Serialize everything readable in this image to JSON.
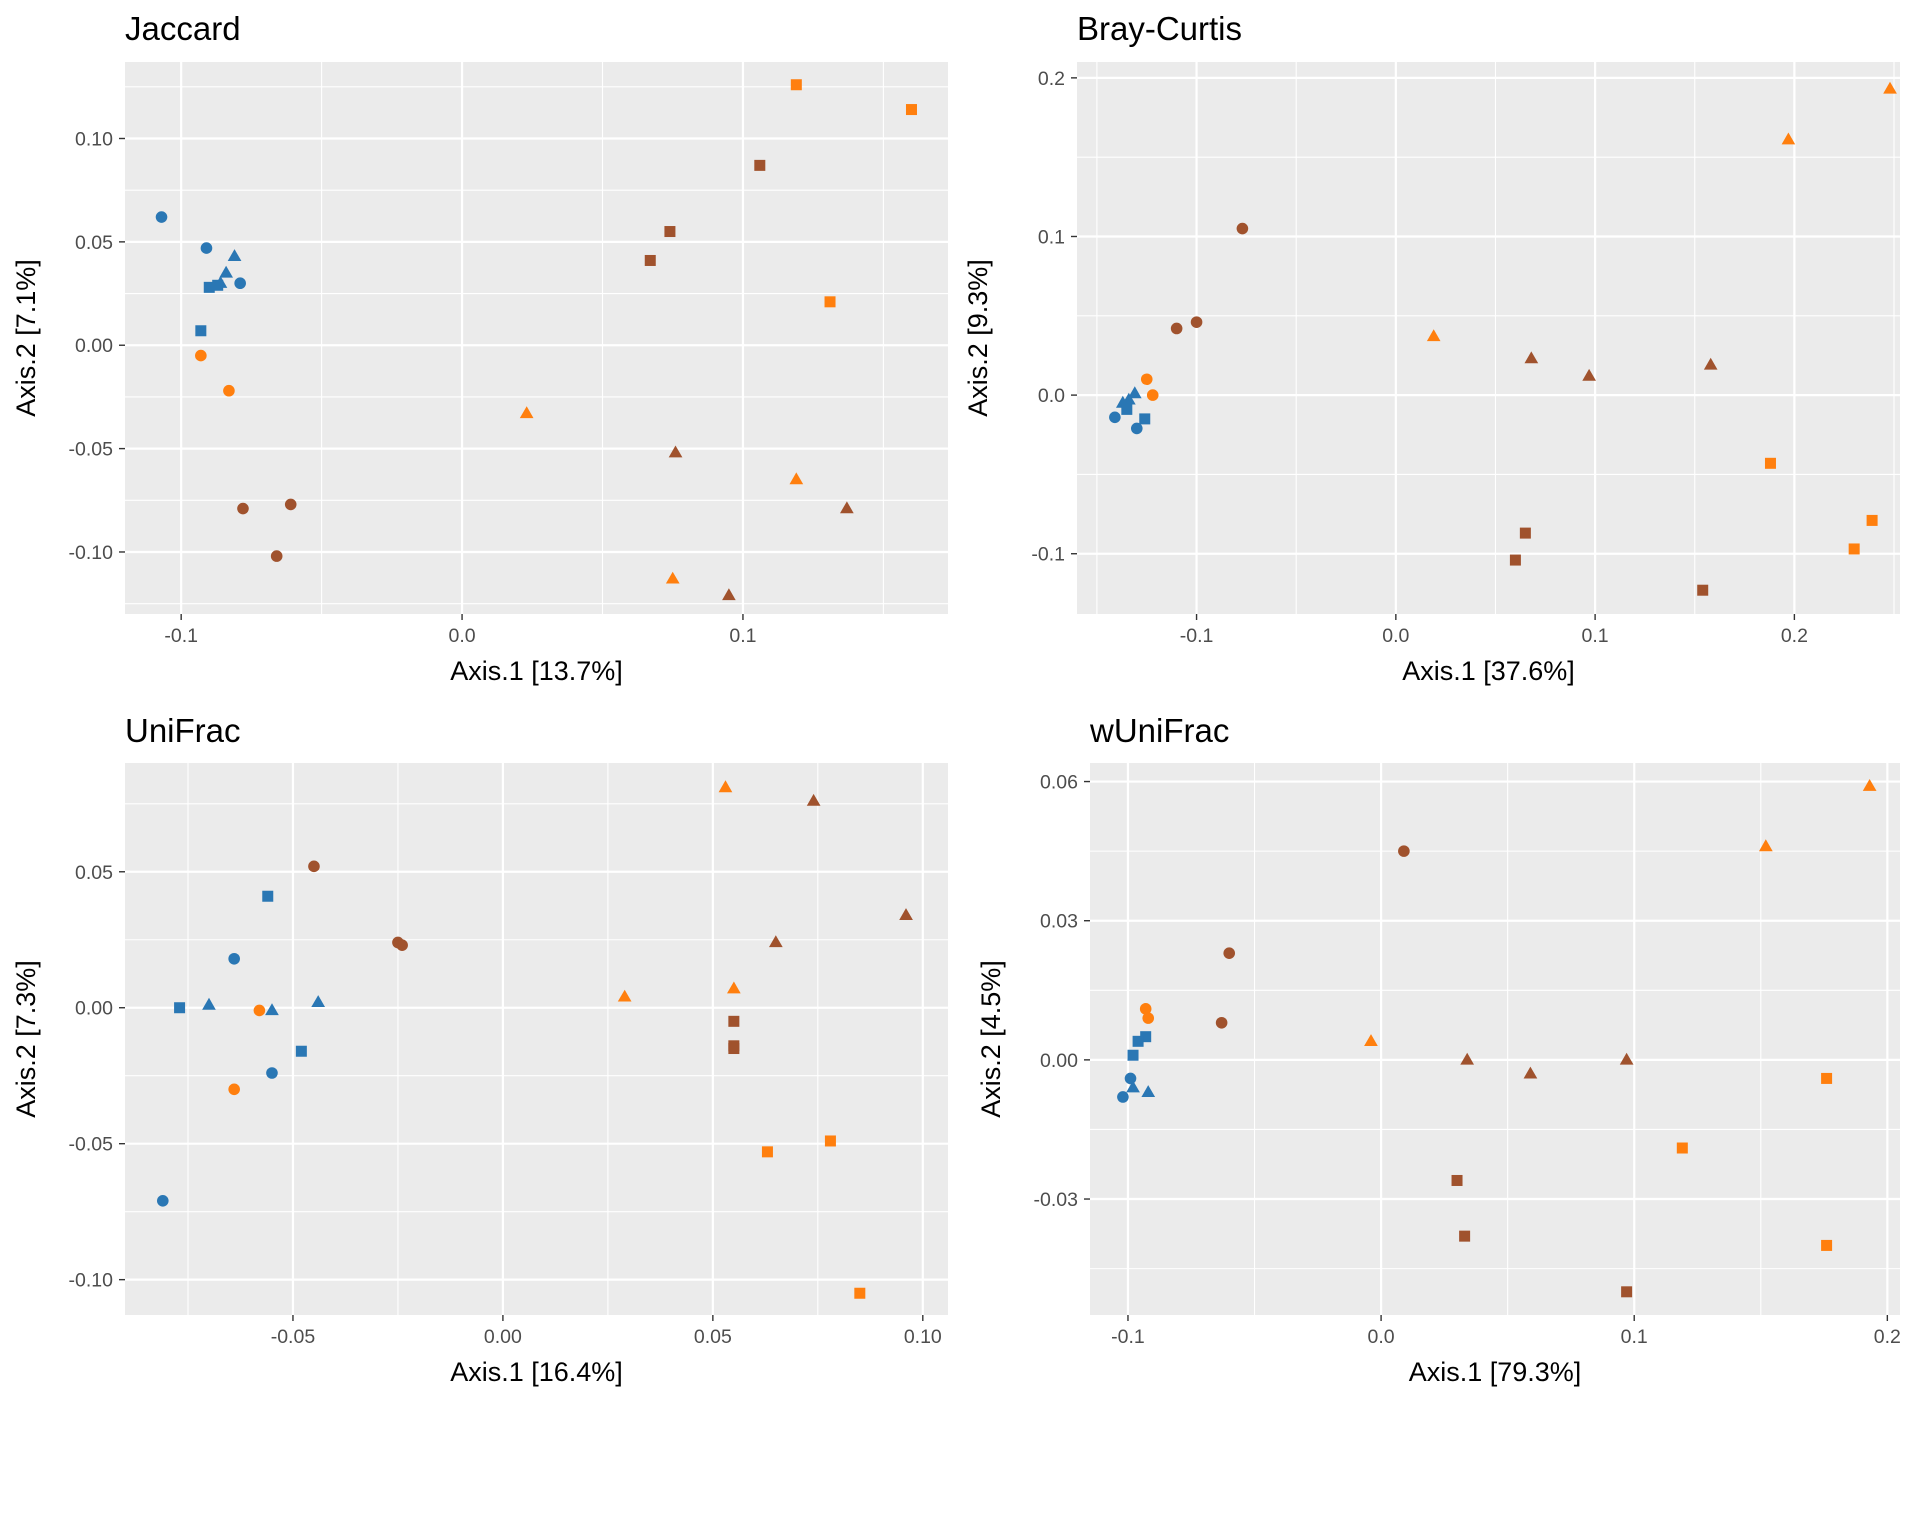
{
  "colors": {
    "blue": "#2a77b4",
    "orange": "#ff7f0e",
    "brown": "#a0522d"
  },
  "chart_data": [
    {
      "type": "scatter",
      "title": "Jaccard",
      "xlabel": "Axis.1   [13.7%]",
      "ylabel": "Axis.2   [7.1%]",
      "xlim": [
        -0.12,
        0.173
      ],
      "ylim": [
        -0.13,
        0.137
      ],
      "xticks": [
        -0.1,
        0.0,
        0.1
      ],
      "xtick_labels": [
        "-0.1",
        "0.0",
        "0.1"
      ],
      "yticks": [
        -0.1,
        -0.05,
        0.0,
        0.05,
        0.1
      ],
      "ytick_labels": [
        "-0.10",
        "-0.05",
        "0.00",
        "0.05",
        "0.10"
      ],
      "grid": true,
      "points": [
        {
          "x": -0.107,
          "y": 0.062,
          "color": "blue",
          "shape": "circle"
        },
        {
          "x": -0.091,
          "y": 0.047,
          "color": "blue",
          "shape": "circle"
        },
        {
          "x": -0.079,
          "y": 0.03,
          "color": "blue",
          "shape": "circle"
        },
        {
          "x": -0.081,
          "y": 0.043,
          "color": "blue",
          "shape": "triangle"
        },
        {
          "x": -0.084,
          "y": 0.035,
          "color": "blue",
          "shape": "triangle"
        },
        {
          "x": -0.086,
          "y": 0.03,
          "color": "blue",
          "shape": "triangle"
        },
        {
          "x": -0.09,
          "y": 0.028,
          "color": "blue",
          "shape": "square"
        },
        {
          "x": -0.087,
          "y": 0.029,
          "color": "blue",
          "shape": "square"
        },
        {
          "x": -0.093,
          "y": 0.007,
          "color": "blue",
          "shape": "square"
        },
        {
          "x": -0.093,
          "y": -0.005,
          "color": "orange",
          "shape": "circle"
        },
        {
          "x": -0.083,
          "y": -0.022,
          "color": "orange",
          "shape": "circle"
        },
        {
          "x": -0.078,
          "y": -0.079,
          "color": "brown",
          "shape": "circle"
        },
        {
          "x": -0.061,
          "y": -0.077,
          "color": "brown",
          "shape": "circle"
        },
        {
          "x": -0.066,
          "y": -0.102,
          "color": "brown",
          "shape": "circle"
        },
        {
          "x": 0.023,
          "y": -0.033,
          "color": "orange",
          "shape": "triangle"
        },
        {
          "x": 0.076,
          "y": -0.052,
          "color": "brown",
          "shape": "triangle"
        },
        {
          "x": 0.119,
          "y": -0.065,
          "color": "orange",
          "shape": "triangle"
        },
        {
          "x": 0.137,
          "y": -0.079,
          "color": "brown",
          "shape": "triangle"
        },
        {
          "x": 0.075,
          "y": -0.113,
          "color": "orange",
          "shape": "triangle"
        },
        {
          "x": 0.095,
          "y": -0.121,
          "color": "brown",
          "shape": "triangle"
        },
        {
          "x": 0.119,
          "y": 0.126,
          "color": "orange",
          "shape": "square"
        },
        {
          "x": 0.16,
          "y": 0.114,
          "color": "orange",
          "shape": "square"
        },
        {
          "x": 0.106,
          "y": 0.087,
          "color": "brown",
          "shape": "square"
        },
        {
          "x": 0.074,
          "y": 0.055,
          "color": "brown",
          "shape": "square"
        },
        {
          "x": 0.067,
          "y": 0.041,
          "color": "brown",
          "shape": "square"
        },
        {
          "x": 0.131,
          "y": 0.021,
          "color": "orange",
          "shape": "square"
        }
      ]
    },
    {
      "type": "scatter",
      "title": "Bray-Curtis",
      "xlabel": "Axis.1   [37.6%]",
      "ylabel": "Axis.2   [9.3%]",
      "xlim": [
        -0.16,
        0.253
      ],
      "ylim": [
        -0.138,
        0.21
      ],
      "xticks": [
        -0.1,
        0.0,
        0.1,
        0.2
      ],
      "xtick_labels": [
        "-0.1",
        "0.0",
        "0.1",
        "0.2"
      ],
      "yticks": [
        -0.1,
        0.0,
        0.1,
        0.2
      ],
      "ytick_labels": [
        "-0.1",
        "0.0",
        "0.1",
        "0.2"
      ],
      "grid": true,
      "points": [
        {
          "x": -0.077,
          "y": 0.105,
          "color": "brown",
          "shape": "circle"
        },
        {
          "x": -0.1,
          "y": 0.046,
          "color": "brown",
          "shape": "circle"
        },
        {
          "x": -0.11,
          "y": 0.042,
          "color": "brown",
          "shape": "circle"
        },
        {
          "x": -0.125,
          "y": 0.01,
          "color": "orange",
          "shape": "circle"
        },
        {
          "x": -0.122,
          "y": 0.0,
          "color": "orange",
          "shape": "circle"
        },
        {
          "x": -0.131,
          "y": 0.001,
          "color": "blue",
          "shape": "triangle"
        },
        {
          "x": -0.134,
          "y": -0.003,
          "color": "blue",
          "shape": "triangle"
        },
        {
          "x": -0.137,
          "y": -0.005,
          "color": "blue",
          "shape": "triangle"
        },
        {
          "x": -0.135,
          "y": -0.009,
          "color": "blue",
          "shape": "square"
        },
        {
          "x": -0.126,
          "y": -0.015,
          "color": "blue",
          "shape": "square"
        },
        {
          "x": -0.141,
          "y": -0.014,
          "color": "blue",
          "shape": "circle"
        },
        {
          "x": -0.13,
          "y": -0.021,
          "color": "blue",
          "shape": "circle"
        },
        {
          "x": 0.019,
          "y": 0.037,
          "color": "orange",
          "shape": "triangle"
        },
        {
          "x": 0.068,
          "y": 0.023,
          "color": "brown",
          "shape": "triangle"
        },
        {
          "x": 0.097,
          "y": 0.012,
          "color": "brown",
          "shape": "triangle"
        },
        {
          "x": 0.158,
          "y": 0.019,
          "color": "brown",
          "shape": "triangle"
        },
        {
          "x": 0.197,
          "y": 0.161,
          "color": "orange",
          "shape": "triangle"
        },
        {
          "x": 0.248,
          "y": 0.193,
          "color": "orange",
          "shape": "triangle"
        },
        {
          "x": 0.188,
          "y": -0.043,
          "color": "orange",
          "shape": "square"
        },
        {
          "x": 0.239,
          "y": -0.079,
          "color": "orange",
          "shape": "square"
        },
        {
          "x": 0.23,
          "y": -0.097,
          "color": "orange",
          "shape": "square"
        },
        {
          "x": 0.065,
          "y": -0.087,
          "color": "brown",
          "shape": "square"
        },
        {
          "x": 0.06,
          "y": -0.104,
          "color": "brown",
          "shape": "square"
        },
        {
          "x": 0.154,
          "y": -0.123,
          "color": "brown",
          "shape": "square"
        }
      ]
    },
    {
      "type": "scatter",
      "title": "UniFrac",
      "xlabel": "Axis.1   [16.4%]",
      "ylabel": "Axis.2   [7.3%]",
      "xlim": [
        -0.09,
        0.106
      ],
      "ylim": [
        -0.113,
        0.09
      ],
      "xticks": [
        -0.05,
        0.0,
        0.05,
        0.1
      ],
      "xtick_labels": [
        "-0.05",
        "0.00",
        "0.05",
        "0.10"
      ],
      "yticks": [
        -0.1,
        -0.05,
        0.0,
        0.05
      ],
      "ytick_labels": [
        "-0.10",
        "-0.05",
        "0.00",
        "0.05"
      ],
      "grid": true,
      "points": [
        {
          "x": -0.045,
          "y": 0.052,
          "color": "brown",
          "shape": "circle"
        },
        {
          "x": -0.025,
          "y": 0.024,
          "color": "brown",
          "shape": "circle"
        },
        {
          "x": -0.024,
          "y": 0.023,
          "color": "brown",
          "shape": "circle"
        },
        {
          "x": -0.056,
          "y": 0.041,
          "color": "blue",
          "shape": "square"
        },
        {
          "x": -0.064,
          "y": 0.018,
          "color": "blue",
          "shape": "circle"
        },
        {
          "x": -0.077,
          "y": 0.0,
          "color": "blue",
          "shape": "square"
        },
        {
          "x": -0.07,
          "y": 0.001,
          "color": "blue",
          "shape": "triangle"
        },
        {
          "x": -0.058,
          "y": -0.001,
          "color": "orange",
          "shape": "circle"
        },
        {
          "x": -0.055,
          "y": -0.001,
          "color": "blue",
          "shape": "triangle"
        },
        {
          "x": -0.044,
          "y": 0.002,
          "color": "blue",
          "shape": "triangle"
        },
        {
          "x": -0.048,
          "y": -0.016,
          "color": "blue",
          "shape": "square"
        },
        {
          "x": -0.055,
          "y": -0.024,
          "color": "blue",
          "shape": "circle"
        },
        {
          "x": -0.064,
          "y": -0.03,
          "color": "orange",
          "shape": "circle"
        },
        {
          "x": -0.081,
          "y": -0.071,
          "color": "blue",
          "shape": "circle"
        },
        {
          "x": 0.029,
          "y": 0.004,
          "color": "orange",
          "shape": "triangle"
        },
        {
          "x": 0.053,
          "y": 0.081,
          "color": "orange",
          "shape": "triangle"
        },
        {
          "x": 0.074,
          "y": 0.076,
          "color": "brown",
          "shape": "triangle"
        },
        {
          "x": 0.096,
          "y": 0.034,
          "color": "brown",
          "shape": "triangle"
        },
        {
          "x": 0.065,
          "y": 0.024,
          "color": "brown",
          "shape": "triangle"
        },
        {
          "x": 0.055,
          "y": 0.007,
          "color": "orange",
          "shape": "triangle"
        },
        {
          "x": 0.055,
          "y": -0.005,
          "color": "brown",
          "shape": "square"
        },
        {
          "x": 0.055,
          "y": -0.014,
          "color": "brown",
          "shape": "square"
        },
        {
          "x": 0.055,
          "y": -0.015,
          "color": "brown",
          "shape": "square"
        },
        {
          "x": 0.078,
          "y": -0.049,
          "color": "orange",
          "shape": "square"
        },
        {
          "x": 0.063,
          "y": -0.053,
          "color": "orange",
          "shape": "square"
        },
        {
          "x": 0.085,
          "y": -0.105,
          "color": "orange",
          "shape": "square"
        }
      ]
    },
    {
      "type": "scatter",
      "title": "wUniFrac",
      "xlabel": "Axis.1   [79.3%]",
      "ylabel": "Axis.2   [4.5%]",
      "xlim": [
        -0.115,
        0.205
      ],
      "ylim": [
        -0.055,
        0.064
      ],
      "xticks": [
        -0.1,
        0.0,
        0.1,
        0.2
      ],
      "xtick_labels": [
        "-0.1",
        "0.0",
        "0.1",
        "0.2"
      ],
      "yticks": [
        -0.03,
        0.0,
        0.03,
        0.06
      ],
      "ytick_labels": [
        "-0.03",
        "0.00",
        "0.03",
        "0.06"
      ],
      "grid": true,
      "points": [
        {
          "x": 0.009,
          "y": 0.045,
          "color": "brown",
          "shape": "circle"
        },
        {
          "x": -0.06,
          "y": 0.023,
          "color": "brown",
          "shape": "circle"
        },
        {
          "x": -0.063,
          "y": 0.008,
          "color": "brown",
          "shape": "circle"
        },
        {
          "x": -0.093,
          "y": 0.011,
          "color": "orange",
          "shape": "circle"
        },
        {
          "x": -0.092,
          "y": 0.009,
          "color": "orange",
          "shape": "circle"
        },
        {
          "x": -0.093,
          "y": 0.005,
          "color": "blue",
          "shape": "square"
        },
        {
          "x": -0.096,
          "y": 0.004,
          "color": "blue",
          "shape": "square"
        },
        {
          "x": -0.098,
          "y": 0.001,
          "color": "blue",
          "shape": "square"
        },
        {
          "x": -0.099,
          "y": -0.004,
          "color": "blue",
          "shape": "circle"
        },
        {
          "x": -0.098,
          "y": -0.006,
          "color": "blue",
          "shape": "triangle"
        },
        {
          "x": -0.092,
          "y": -0.007,
          "color": "blue",
          "shape": "triangle"
        },
        {
          "x": -0.102,
          "y": -0.008,
          "color": "blue",
          "shape": "circle"
        },
        {
          "x": -0.004,
          "y": 0.004,
          "color": "orange",
          "shape": "triangle"
        },
        {
          "x": 0.034,
          "y": 0.0,
          "color": "brown",
          "shape": "triangle"
        },
        {
          "x": 0.059,
          "y": -0.003,
          "color": "brown",
          "shape": "triangle"
        },
        {
          "x": 0.097,
          "y": 0.0,
          "color": "brown",
          "shape": "triangle"
        },
        {
          "x": 0.152,
          "y": 0.046,
          "color": "orange",
          "shape": "triangle"
        },
        {
          "x": 0.193,
          "y": 0.059,
          "color": "orange",
          "shape": "triangle"
        },
        {
          "x": 0.176,
          "y": -0.004,
          "color": "orange",
          "shape": "square"
        },
        {
          "x": 0.119,
          "y": -0.019,
          "color": "orange",
          "shape": "square"
        },
        {
          "x": 0.176,
          "y": -0.04,
          "color": "orange",
          "shape": "square"
        },
        {
          "x": 0.03,
          "y": -0.026,
          "color": "brown",
          "shape": "square"
        },
        {
          "x": 0.033,
          "y": -0.038,
          "color": "brown",
          "shape": "square"
        },
        {
          "x": 0.097,
          "y": -0.05,
          "color": "brown",
          "shape": "square"
        }
      ]
    }
  ]
}
